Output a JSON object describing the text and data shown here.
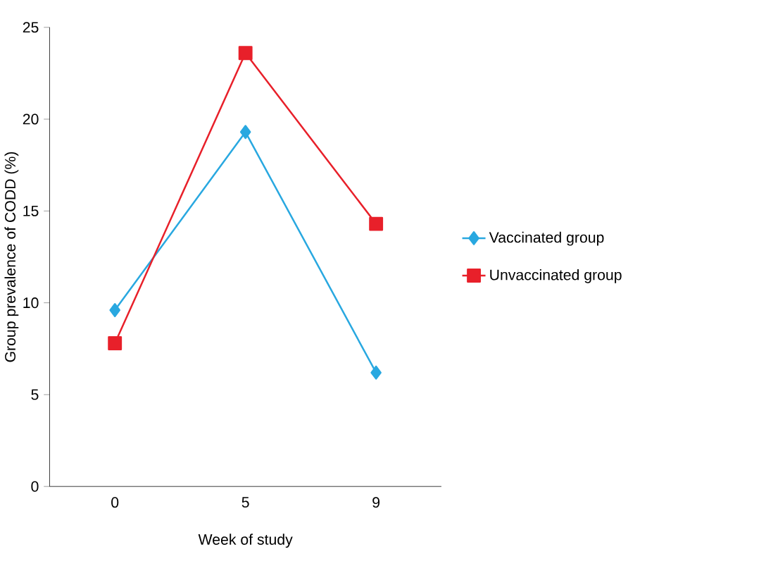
{
  "chart_data": {
    "type": "line",
    "xlabel": "Week of study",
    "ylabel": "Group prevalence of CODD (%)",
    "categories": [
      "0",
      "5",
      "9"
    ],
    "series": [
      {
        "name": "Vaccinated group",
        "color": "#29a8e0",
        "marker": "diamond",
        "values": [
          9.6,
          19.3,
          6.2
        ]
      },
      {
        "name": "Unvaccinated group",
        "color": "#e8202a",
        "marker": "square",
        "values": [
          7.8,
          23.6,
          14.3
        ]
      }
    ],
    "ylim": [
      0,
      25
    ],
    "yticks": [
      0,
      5,
      10,
      15,
      20,
      25
    ],
    "legend": "right",
    "line_style": "solid"
  }
}
